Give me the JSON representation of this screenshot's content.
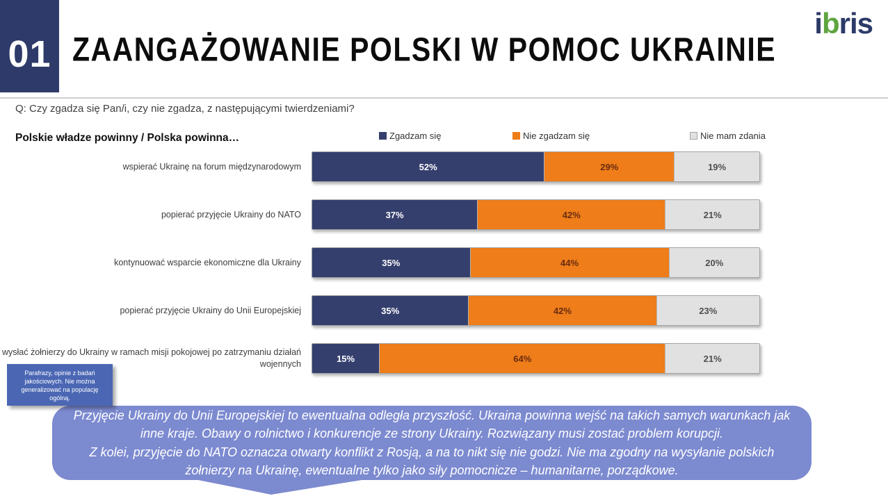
{
  "header": {
    "number": "01",
    "title": "ZAANGAŻOWANIE POLSKI W POMOC UKRAINIE"
  },
  "logo": {
    "text": "ibris",
    "part1": "i",
    "part2": "b",
    "part3": "ris",
    "navy": "#2c3a68",
    "green": "#5ea53f"
  },
  "question": "Q: Czy zgadza się Pan/i, czy nie zgadza, z następującymi twierdzeniami?",
  "chart_intro": "Polskie władze powinny / Polska powinna…",
  "chart_data": {
    "type": "bar",
    "stacked": true,
    "orientation": "horizontal",
    "unit": "%",
    "xlim": [
      0,
      100
    ],
    "legend_position": "top",
    "grid": false,
    "categories": [
      "wspierać Ukrainę na forum międzynarodowym",
      "popierać przyjęcie Ukrainy do NATO",
      "kontynuować wsparcie ekonomiczne dla Ukrainy",
      "popierać przyjęcie Ukrainy do Unii Europejskiej",
      "wysłać żołnierzy do Ukrainy w ramach misji pokojowej po zatrzymaniu działań wojennych"
    ],
    "series": [
      {
        "name": "Zgadzam się",
        "color": "#353f6e",
        "label_color": "#ffffff",
        "swatch_border": "none",
        "values": [
          52,
          37,
          35,
          35,
          15
        ]
      },
      {
        "name": "Nie zgadzam się",
        "color": "#ee7d1a",
        "label_color": "#6a2c10",
        "swatch_border": "none",
        "values": [
          29,
          42,
          44,
          42,
          64
        ]
      },
      {
        "name": "Nie mam zdania",
        "color": "#e1e1e1",
        "label_color": "#4f4f4f",
        "swatch_border": "1px solid #a6a6a6",
        "values": [
          19,
          21,
          20,
          23,
          21
        ]
      }
    ]
  },
  "note_box": {
    "text": "Parafrazy, opinie z badań jakościowych. Nie można generalizować na populację ogólną.",
    "background": "#4b67b4"
  },
  "quote": {
    "background": "#7c8ad0",
    "p1": "Przyjęcie Ukrainy do Unii Europejskiej to ewentualna odległa przyszłość. Ukraina powinna wejść na takich samych warunkach jak inne kraje. Obawy o rolnictwo i konkurencje ze strony Ukrainy. Rozwiązany musi zostać problem korupcji.",
    "p2": "Z kolei, przyjęcie do NATO oznacza otwarty konflikt z Rosją, a na to nikt się nie godzi. Nie ma zgodny na wysyłanie polskich żołnierzy na Ukrainę, ewentualne tylko jako siły pomocnicze – humanitarne, porządkowe."
  }
}
